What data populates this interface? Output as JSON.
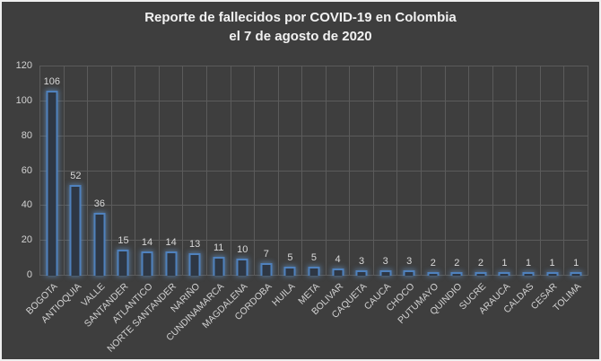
{
  "window": {
    "background": "#3E3E3E",
    "frame_border": "#EFEFEF"
  },
  "title": {
    "line1": "Reporte de fallecidos por COVID-19 en Colombia",
    "line2": "el 7 de agosto de 2020"
  },
  "chart_data": {
    "type": "bar",
    "title": "Reporte de fallecidos por COVID-19 en Colombia el 7 de agosto de 2020",
    "categories": [
      "BOGOTA",
      "ANTIOQUIA",
      "VALLE",
      "SANTANDER",
      "ATLANTICO",
      "NORTE SANTANDER",
      "NARIÑO",
      "CUNDINAMARCA",
      "MAGDALENA",
      "CORDOBA",
      "HUILA",
      "META",
      "BOLIVAR",
      "CAQUETA",
      "CAUCA",
      "CHOCO",
      "PUTUMAYO",
      "QUINDIO",
      "SUCRE",
      "ARAUCA",
      "CALDAS",
      "CESAR",
      "TOLIMA"
    ],
    "values": [
      106,
      52,
      36,
      15,
      14,
      14,
      13,
      11,
      10,
      7,
      5,
      5,
      4,
      3,
      3,
      3,
      2,
      2,
      2,
      1,
      1,
      1,
      1
    ],
    "xlabel": "",
    "ylabel": "",
    "ylim": [
      0,
      120
    ],
    "yticks": [
      0,
      20,
      40,
      60,
      80,
      100,
      120
    ],
    "grid": true,
    "legend": "none",
    "data_labels": true,
    "colors": {
      "background": "#3E3E3E",
      "gridline": "#5B5B5B",
      "bar_border": "#4F81BD",
      "bar_fill": "#2E3744",
      "bar_glow": "rgba(105,160,220,0.55)",
      "data_label_text": "#D9D9D9",
      "axis_text": "#D2D2D2",
      "title_text": "#F2F2F2"
    }
  }
}
